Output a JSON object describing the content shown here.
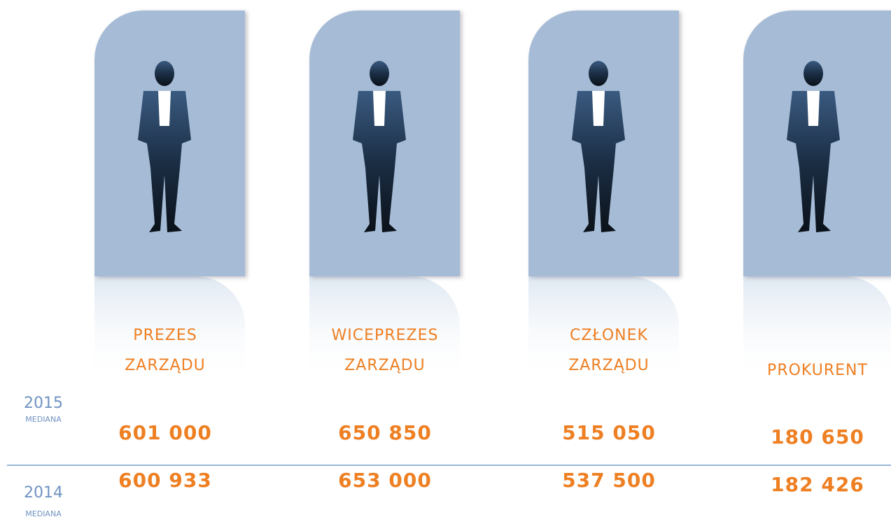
{
  "columns": [
    {
      "label": [
        "PREZES",
        "ZARZĄDU"
      ]
    },
    {
      "label": [
        "WICEPREZES",
        "ZARZĄDU"
      ]
    },
    {
      "label": [
        "CZŁONEK",
        "ZARZĄDU"
      ]
    },
    {
      "label": [
        "PROKURENT"
      ]
    }
  ],
  "rows": [
    {
      "year": "2015",
      "note": "MEDIANA",
      "values": [
        "601 000",
        "650 850",
        "515 050",
        "180 650"
      ]
    },
    {
      "year": "2014",
      "note": "MEDIANA",
      "values": [
        "600 933",
        "653 000",
        "537 500",
        "182 426"
      ]
    }
  ]
}
